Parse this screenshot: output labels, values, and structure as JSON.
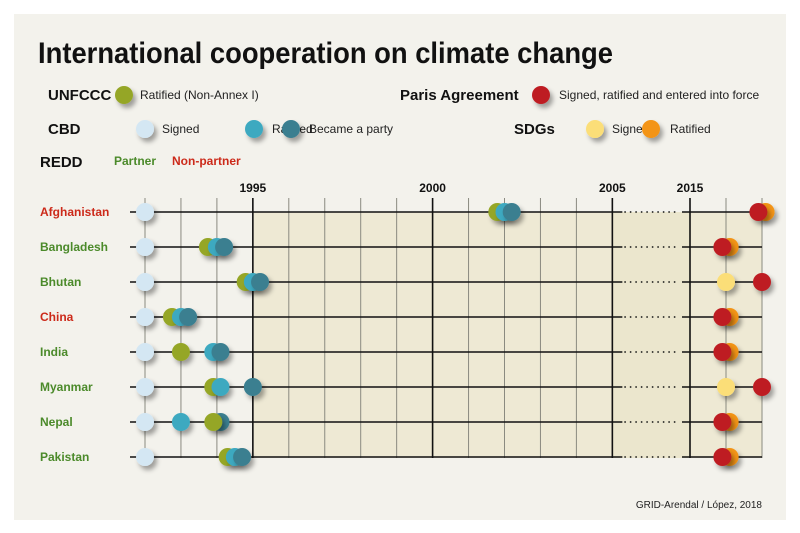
{
  "chart_data": {
    "type": "scatter",
    "title": "International cooperation on climate change",
    "credit": "GRID-Arendal / López, 2018",
    "x_ticks": [
      1995,
      2000,
      2005,
      2015
    ],
    "x_gridlines": [
      1992,
      1993,
      1994,
      1995,
      1996,
      1997,
      1998,
      1999,
      2000,
      2001,
      2002,
      2003,
      2004,
      2005,
      2015,
      2016,
      2017
    ],
    "x_axis_break": [
      2005,
      2015
    ],
    "grid": true,
    "legend": {
      "groups": [
        {
          "label": "UNFCCC",
          "entries": [
            {
              "key": "unfccc_ratified",
              "label": "Ratified (Non-Annex I)"
            }
          ]
        },
        {
          "label": "CBD",
          "entries": [
            {
              "key": "cbd_signed",
              "label": "Signed"
            },
            {
              "key": "cbd_ratified",
              "label": "Ratified"
            },
            {
              "key": "cbd_party",
              "label": "Became a party"
            }
          ]
        },
        {
          "label": "Paris Agreement",
          "entries": [
            {
              "key": "paris",
              "label": "Signed, ratified and entered into force"
            }
          ]
        },
        {
          "label": "SDGs",
          "entries": [
            {
              "key": "sdg_signed",
              "label": "Signed"
            },
            {
              "key": "sdg_ratified",
              "label": "Ratified"
            }
          ]
        }
      ],
      "redd": {
        "label": "REDD",
        "partner": "Partner",
        "non_partner": "Non-partner"
      }
    },
    "colors": {
      "unfccc_ratified": "#95a628",
      "cbd_signed": "#d4e7f3",
      "cbd_ratified": "#3ea9c0",
      "cbd_party": "#3b7f90",
      "paris": "#be1e23",
      "sdg_signed": "#fbde78",
      "sdg_ratified": "#f39414",
      "partner": "#4b8a2a",
      "non_partner": "#cc2a1a"
    },
    "countries": [
      {
        "name": "Afghanistan",
        "redd": "non_partner",
        "points": [
          {
            "key": "cbd_signed",
            "year": 1992.0
          },
          {
            "key": "unfccc_ratified",
            "year": 2001.8
          },
          {
            "key": "cbd_ratified",
            "year": 2002.0
          },
          {
            "key": "cbd_party",
            "year": 2002.2
          },
          {
            "key": "sdg_ratified",
            "year": 2017.1
          },
          {
            "key": "paris",
            "year": 2016.9
          }
        ]
      },
      {
        "name": "Bangladesh",
        "redd": "partner",
        "points": [
          {
            "key": "cbd_signed",
            "year": 1992.0
          },
          {
            "key": "unfccc_ratified",
            "year": 1993.75
          },
          {
            "key": "cbd_ratified",
            "year": 1994.0
          },
          {
            "key": "cbd_party",
            "year": 1994.2
          },
          {
            "key": "sdg_ratified",
            "year": 2016.1
          },
          {
            "key": "paris",
            "year": 2015.9
          }
        ]
      },
      {
        "name": "Bhutan",
        "redd": "partner",
        "points": [
          {
            "key": "cbd_signed",
            "year": 1992.0
          },
          {
            "key": "unfccc_ratified",
            "year": 1994.8
          },
          {
            "key": "cbd_ratified",
            "year": 1995.0
          },
          {
            "key": "cbd_party",
            "year": 1995.2
          },
          {
            "key": "sdg_signed",
            "year": 2016.0
          },
          {
            "key": "paris",
            "year": 2017.0
          }
        ]
      },
      {
        "name": "China",
        "redd": "non_partner",
        "points": [
          {
            "key": "cbd_signed",
            "year": 1992.0
          },
          {
            "key": "unfccc_ratified",
            "year": 1992.75
          },
          {
            "key": "cbd_ratified",
            "year": 1993.0
          },
          {
            "key": "cbd_party",
            "year": 1993.2
          },
          {
            "key": "sdg_ratified",
            "year": 2016.1
          },
          {
            "key": "paris",
            "year": 2015.9
          }
        ]
      },
      {
        "name": "India",
        "redd": "partner",
        "points": [
          {
            "key": "cbd_signed",
            "year": 1992.0
          },
          {
            "key": "unfccc_ratified",
            "year": 1993.0
          },
          {
            "key": "cbd_ratified",
            "year": 1993.9
          },
          {
            "key": "cbd_party",
            "year": 1994.1
          },
          {
            "key": "sdg_ratified",
            "year": 2016.1
          },
          {
            "key": "paris",
            "year": 2015.9
          }
        ]
      },
      {
        "name": "Myanmar",
        "redd": "partner",
        "points": [
          {
            "key": "cbd_signed",
            "year": 1992.0
          },
          {
            "key": "unfccc_ratified",
            "year": 1993.9
          },
          {
            "key": "cbd_ratified",
            "year": 1994.1
          },
          {
            "key": "cbd_party",
            "year": 1995.0
          },
          {
            "key": "sdg_signed",
            "year": 2016.0
          },
          {
            "key": "paris",
            "year": 2017.0
          }
        ]
      },
      {
        "name": "Nepal",
        "redd": "partner",
        "points": [
          {
            "key": "cbd_signed",
            "year": 1992.0
          },
          {
            "key": "cbd_ratified",
            "year": 1993.0
          },
          {
            "key": "cbd_party",
            "year": 1994.1
          },
          {
            "key": "unfccc_ratified",
            "year": 1993.9
          },
          {
            "key": "sdg_ratified",
            "year": 2016.1
          },
          {
            "key": "paris",
            "year": 2015.9
          }
        ]
      },
      {
        "name": "Pakistan",
        "redd": "partner",
        "points": [
          {
            "key": "cbd_signed",
            "year": 1992.0
          },
          {
            "key": "unfccc_ratified",
            "year": 1994.3
          },
          {
            "key": "cbd_ratified",
            "year": 1994.5
          },
          {
            "key": "cbd_party",
            "year": 1994.7
          },
          {
            "key": "sdg_ratified",
            "year": 2016.1
          },
          {
            "key": "paris",
            "year": 2015.9
          }
        ]
      }
    ]
  }
}
